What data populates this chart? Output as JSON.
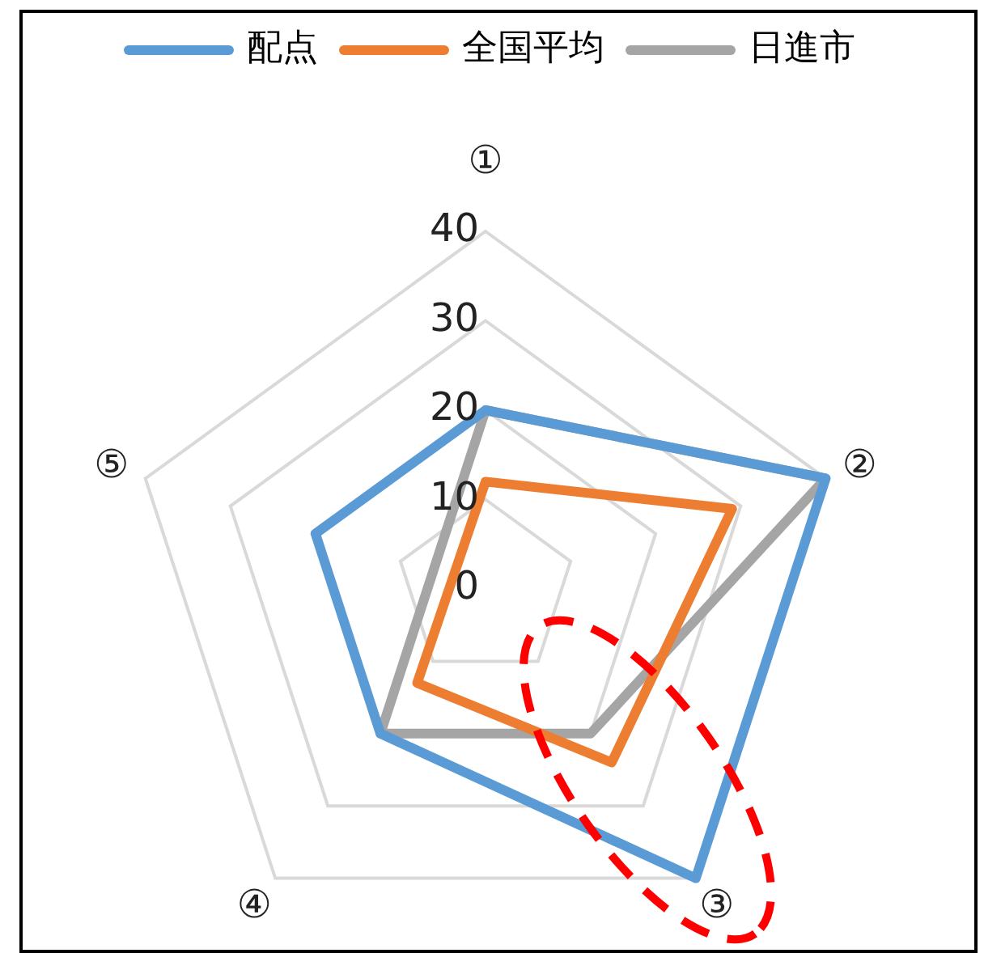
{
  "chart_data": {
    "type": "radar",
    "categories": [
      "①",
      "②",
      "③",
      "④",
      "⑤"
    ],
    "series": [
      {
        "name": "配点",
        "color": "#5b9bd5",
        "values": [
          20,
          40,
          40,
          20,
          20
        ]
      },
      {
        "name": "全国平均",
        "color": "#ed7d31",
        "values": [
          12,
          29,
          24,
          13,
          null
        ]
      },
      {
        "name": "日進市",
        "color": "#a5a5a5",
        "values": [
          20,
          40,
          20,
          20,
          null
        ]
      }
    ],
    "ylim": [
      0,
      40
    ],
    "yticks": [
      0,
      10,
      20,
      30,
      40
    ],
    "grid": true,
    "legend": "top",
    "marker": "none",
    "line_style": "solid"
  }
}
